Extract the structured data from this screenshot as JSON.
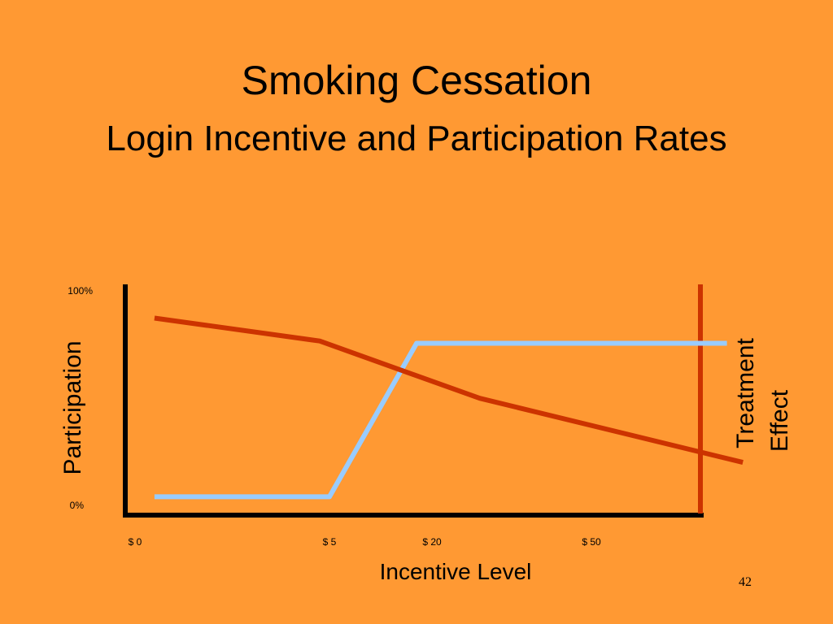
{
  "slide": {
    "title": "Smoking Cessation",
    "subtitle": "Login Incentive and Participation Rates",
    "page_number": "42"
  },
  "colors": {
    "background": "#FF9933",
    "participation_line": "#99CCFF",
    "treatment_line": "#CC3300",
    "axis": "#000000",
    "treatment_axis": "#CC3300"
  },
  "chart_data": {
    "type": "line",
    "xlabel": "Incentive Level",
    "ylabel": "Participation",
    "ylabel_right": "Treatment Effect",
    "ylim": [
      0,
      1
    ],
    "x_tick_labels": [
      "$ 0",
      "$ 5",
      "$ 20",
      "$ 50"
    ],
    "y_tick_labels": [
      "0%",
      "100%"
    ],
    "grid": false,
    "legend": "none",
    "series": [
      {
        "points": [
          {
            "x": 0.1,
            "y": 0.08
          },
          {
            "x": 1.0,
            "y": 0.08
          },
          {
            "x": 1.85,
            "y": 0.75
          },
          {
            "x": 3.85,
            "y": 0.75
          }
        ]
      },
      {
        "points": [
          {
            "x": 0.1,
            "y": 0.86
          },
          {
            "x": 0.95,
            "y": 0.76
          },
          {
            "x": 2.3,
            "y": 0.51
          },
          {
            "x": 3.95,
            "y": 0.23
          }
        ]
      }
    ]
  }
}
